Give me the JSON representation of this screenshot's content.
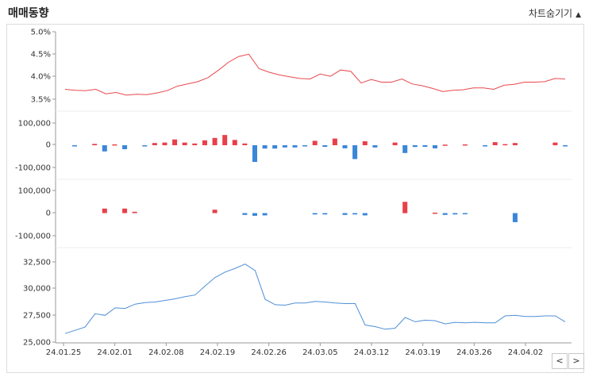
{
  "header": {
    "title": "매매동향",
    "toggle_label": "차트숨기기",
    "toggle_icon": "triangle-up-icon"
  },
  "nav": {
    "prev_label": "<",
    "next_label": ">"
  },
  "chart_data": [
    {
      "type": "line",
      "yticks": [
        "5.0%",
        "4.5%",
        "4.0%",
        "3.5%"
      ],
      "ylim": [
        3.0,
        5.0
      ],
      "color": "#e8484d",
      "values": [
        3.72,
        3.7,
        3.69,
        3.72,
        3.62,
        3.65,
        3.59,
        3.61,
        3.6,
        3.64,
        3.69,
        3.79,
        3.84,
        3.89,
        3.98,
        4.14,
        4.32,
        4.45,
        4.5,
        4.18,
        4.1,
        4.04,
        4.0,
        3.96,
        3.95,
        4.06,
        4.01,
        4.15,
        4.12,
        3.86,
        3.94,
        3.88,
        3.88,
        3.95,
        3.84,
        3.8,
        3.74,
        3.67,
        3.7,
        3.71,
        3.75,
        3.75,
        3.72,
        3.81,
        3.83,
        3.88,
        3.88,
        3.89,
        3.96,
        3.95
      ]
    },
    {
      "type": "bar",
      "yticks": [
        "100,000",
        "0",
        "-100,000"
      ],
      "ylim": [
        -100000,
        100000
      ],
      "positive_color": "#e8404a",
      "negative_color": "#3a86d8",
      "values": [
        -3000,
        0,
        6000,
        -28000,
        4000,
        -18000,
        0,
        -4000,
        10000,
        12000,
        26000,
        12000,
        8000,
        22000,
        33000,
        46000,
        24000,
        8000,
        -75000,
        -15000,
        -15000,
        -10000,
        -10000,
        -4000,
        20000,
        -7000,
        30000,
        -14000,
        -62000,
        18000,
        -10000,
        0,
        12000,
        -35000,
        -8000,
        -7000,
        -14000,
        3000,
        0,
        4000,
        0,
        -3000,
        14000,
        5000,
        10000,
        0,
        0,
        0,
        12000,
        -3000
      ]
    },
    {
      "type": "bar",
      "yticks": [
        "100,000",
        "0",
        "-100,000"
      ],
      "ylim": [
        -100000,
        100000
      ],
      "positive_color": "#e8404a",
      "negative_color": "#3a86d8",
      "values": [
        0,
        0,
        0,
        20000,
        0,
        20000,
        6000,
        0,
        0,
        0,
        0,
        0,
        0,
        0,
        15000,
        0,
        0,
        -8000,
        -12000,
        -10000,
        0,
        0,
        0,
        0,
        -6000,
        -6000,
        0,
        -8000,
        -6000,
        -10000,
        0,
        0,
        0,
        50000,
        0,
        0,
        2000,
        -8000,
        -6000,
        -4000,
        0,
        0,
        0,
        0,
        -40000,
        0,
        0,
        0,
        0,
        0
      ]
    },
    {
      "type": "line",
      "yticks": [
        "32,500",
        "30,000",
        "27,500",
        "25,000"
      ],
      "ylim": [
        25000,
        33750
      ],
      "color": "#4f8fd8",
      "values": [
        25800,
        26100,
        26400,
        27650,
        27500,
        28200,
        28150,
        28550,
        28700,
        28750,
        28900,
        29050,
        29250,
        29400,
        30250,
        31050,
        31550,
        31900,
        32300,
        31700,
        29000,
        28500,
        28450,
        28650,
        28650,
        28800,
        28750,
        28650,
        28600,
        28600,
        26600,
        26450,
        26200,
        26300,
        27300,
        26900,
        27050,
        27000,
        26700,
        26850,
        26800,
        26850,
        26800,
        26800,
        27450,
        27500,
        27400,
        27400,
        27450,
        27450,
        26900
      ],
      "x_labels": [
        "24.01.25",
        "24.02.01",
        "24.02.08",
        "24.02.19",
        "24.02.26",
        "24.03.05",
        "24.03.12",
        "24.03.19",
        "24.03.26",
        "24.04.02"
      ]
    }
  ]
}
